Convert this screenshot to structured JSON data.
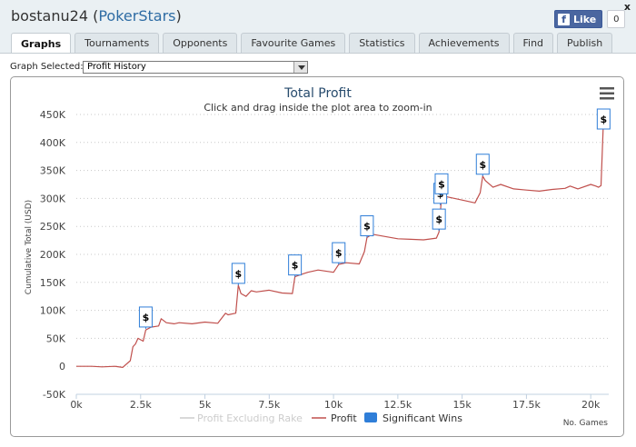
{
  "window": {
    "user": "bostanu24",
    "site": "PokerStars",
    "close": "x"
  },
  "facebook": {
    "like_label": "Like",
    "count": "0",
    "logo": "f"
  },
  "tabs": [
    "Graphs",
    "Tournaments",
    "Opponents",
    "Favourite Games",
    "Statistics",
    "Achievements",
    "Find",
    "Publish"
  ],
  "active_tab": "Graphs",
  "graph_selector": {
    "label": "Graph Selected:",
    "value": "Profit History"
  },
  "menu_icon": "hamburger-icon",
  "colors": {
    "profit": "#c0504d",
    "rake": "#cccccc",
    "wins": "#2f7ed8"
  },
  "chart_data": {
    "type": "line",
    "title": "Total Profit",
    "subtitle": "Click and drag inside the plot area to zoom-in",
    "xlabel": "No. Games",
    "ylabel": "Cumulative Total (USD)",
    "xlim": [
      0,
      20700
    ],
    "ylim": [
      -50000,
      450000
    ],
    "x_ticks": [
      0,
      2500,
      5000,
      7500,
      10000,
      12500,
      15000,
      17500,
      20000
    ],
    "x_tick_labels": [
      "0k",
      "2.5k",
      "5k",
      "7.5k",
      "10k",
      "12.5k",
      "15k",
      "17.5k",
      "20k"
    ],
    "y_ticks": [
      -50000,
      0,
      50000,
      100000,
      150000,
      200000,
      250000,
      300000,
      350000,
      400000,
      450000
    ],
    "y_tick_labels": [
      "-50K",
      "0",
      "50K",
      "100K",
      "150K",
      "200K",
      "250K",
      "300K",
      "350K",
      "400K",
      "450K"
    ],
    "legend": [
      "Profit Excluding Rake",
      "Profit",
      "Significant Wins"
    ],
    "series": [
      {
        "name": "Profit",
        "x": [
          0,
          600,
          1000,
          1500,
          1800,
          2100,
          2200,
          2300,
          2400,
          2600,
          2700,
          2900,
          3200,
          3300,
          3500,
          3800,
          4000,
          4500,
          5000,
          5500,
          5800,
          5900,
          6200,
          6300,
          6400,
          6600,
          6800,
          7000,
          7500,
          8000,
          8400,
          8500,
          8800,
          9000,
          9400,
          10000,
          10200,
          10500,
          11000,
          11200,
          11300,
          11500,
          12000,
          12500,
          13000,
          13500,
          14000,
          14100,
          14200,
          14500,
          15000,
          15500,
          15700,
          15800,
          15900,
          16200,
          16500,
          17000,
          17500,
          18000,
          18500,
          19000,
          19200,
          19500,
          20000,
          20200,
          20300,
          20400,
          20500
        ],
        "y": [
          0,
          0,
          -1000,
          0,
          -2000,
          10000,
          35000,
          40000,
          50000,
          45000,
          65000,
          70000,
          72000,
          85000,
          78000,
          76000,
          78000,
          76000,
          79000,
          77000,
          95000,
          92000,
          95000,
          145000,
          130000,
          125000,
          135000,
          133000,
          136000,
          131000,
          130000,
          160000,
          165000,
          168000,
          172000,
          168000,
          182000,
          185000,
          183000,
          205000,
          230000,
          236000,
          232000,
          228000,
          227000,
          226000,
          229000,
          240000,
          305000,
          302000,
          297000,
          292000,
          310000,
          340000,
          332000,
          320000,
          325000,
          317000,
          315000,
          313000,
          316000,
          318000,
          322000,
          317000,
          325000,
          322000,
          320000,
          323000,
          445000
        ]
      }
    ],
    "significant_wins": [
      {
        "x": 2700,
        "y": 67000,
        "label": "$"
      },
      {
        "x": 6300,
        "y": 145000,
        "label": "$"
      },
      {
        "x": 8500,
        "y": 160000,
        "label": "$"
      },
      {
        "x": 10200,
        "y": 182000,
        "label": "$"
      },
      {
        "x": 11300,
        "y": 230000,
        "label": "$"
      },
      {
        "x": 14100,
        "y": 242000,
        "label": "$"
      },
      {
        "x": 14150,
        "y": 288000,
        "label": "$"
      },
      {
        "x": 14200,
        "y": 305000,
        "label": "$"
      },
      {
        "x": 15800,
        "y": 340000,
        "label": "$"
      },
      {
        "x": 20500,
        "y": 445000,
        "label": "$"
      }
    ]
  }
}
